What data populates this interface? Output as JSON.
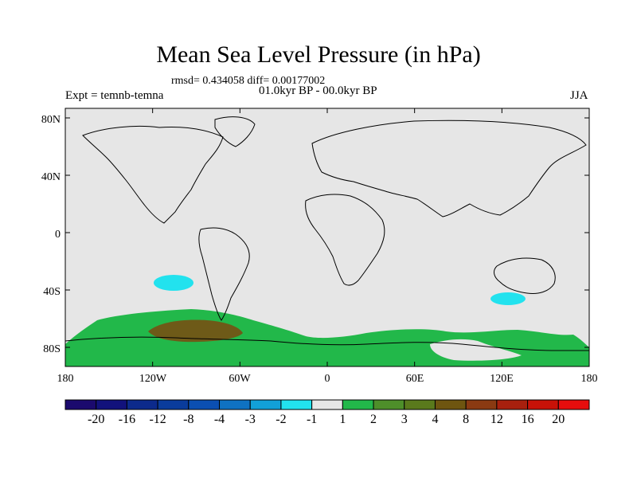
{
  "header": {
    "title": "Mean Sea Level Pressure (in hPa)",
    "stats": "rmsd= 0.434058 diff= 0.00177002",
    "period": "01.0kyr BP - 00.0kyr BP",
    "experiment": "Expt = temnb-temna",
    "season": "JJA"
  },
  "axes": {
    "lat_labels": [
      "80N",
      "40N",
      "0",
      "40S",
      "80S"
    ],
    "lon_labels": [
      "180",
      "120W",
      "60W",
      "0",
      "60E",
      "120E",
      "180"
    ]
  },
  "colorbar": {
    "labels": [
      "-20",
      "-16",
      "-12",
      "-8",
      "-4",
      "-3",
      "-2",
      "-1",
      "1",
      "2",
      "3",
      "4",
      "8",
      "12",
      "16",
      "20"
    ],
    "colors": [
      "#1b0a6e",
      "#12127c",
      "#0c2a8c",
      "#0a3c9c",
      "#0b4fb2",
      "#0f72c2",
      "#12a0d8",
      "#22e2ee",
      "#e6e6e6",
      "#22b84a",
      "#4e8f2a",
      "#5a7a1c",
      "#6e5510",
      "#8a3a12",
      "#a8200e",
      "#c81208",
      "#e60d0d"
    ]
  },
  "map": {
    "background_color": "#e6e6e6",
    "features": [
      {
        "name": "southern-ocean-positive-band",
        "value_class": "1 to 2 hPa",
        "color": "#22b84a"
      },
      {
        "name": "amundsen-positive-core",
        "value_class": "3 to 4 hPa",
        "color": "#6e5a18"
      },
      {
        "name": "south-pacific-negative-cell",
        "value_class": "-2 to -1 hPa",
        "color": "#22e2ee"
      },
      {
        "name": "south-indian-negative-cell",
        "value_class": "-2 to -1 hPa",
        "color": "#22e2ee"
      }
    ]
  }
}
